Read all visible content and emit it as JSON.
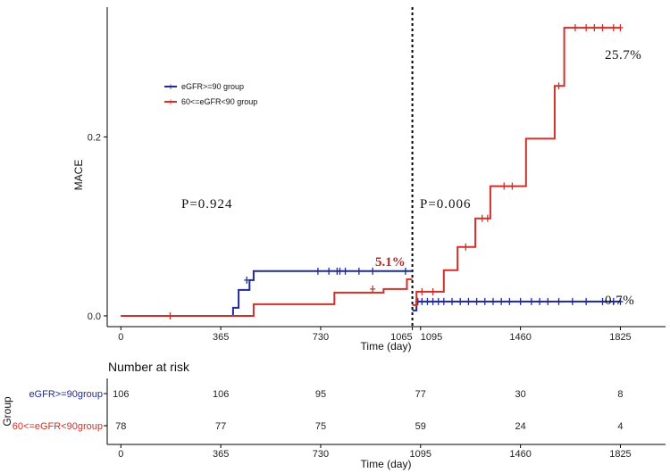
{
  "chart_data": {
    "type": "line",
    "step": true,
    "ylabel": "MACE",
    "xlabel": "Time (day)",
    "xlim": [
      -50,
      1990
    ],
    "ylim": [
      -0.012,
      0.345
    ],
    "x_ticks": [
      0,
      365,
      730,
      1065,
      1095,
      1460,
      1825
    ],
    "x_tick_labels": [
      "0",
      "365",
      "730",
      "1065",
      "1095",
      "1460",
      "1825"
    ],
    "y_ticks": [
      0.0,
      0.2
    ],
    "y_tick_labels": [
      "0.0",
      "0.2"
    ],
    "landmark_x": 1065,
    "colors": {
      "group1": "#1f2a9a",
      "group2": "#d03028"
    },
    "legend": {
      "position": "top-left",
      "items": [
        {
          "label": "eGFR>=90 group",
          "color": "#1f2a9a"
        },
        {
          "label": "60<=eGFR<90 group",
          "color": "#d03028"
        }
      ]
    },
    "annotations": {
      "p_left": "P=0.924",
      "p_right": "P=0.006",
      "label_51": "5.1%",
      "label_257": "25.7%",
      "label_07": "0.7%"
    },
    "series": [
      {
        "color": "#1f2a9a",
        "segments": [
          [
            [
              0,
              0
            ],
            [
              410,
              0
            ],
            [
              410,
              0.009
            ],
            [
              430,
              0.009
            ],
            [
              430,
              0.029
            ],
            [
              470,
              0.029
            ],
            [
              470,
              0.04
            ],
            [
              485,
              0.04
            ],
            [
              485,
              0.05
            ],
            [
              1065,
              0.05
            ]
          ],
          [
            [
              1065,
              0.006
            ],
            [
              1080,
              0.006
            ],
            [
              1080,
              0.016
            ],
            [
              1825,
              0.016
            ]
          ]
        ],
        "censors": [
          [
            460,
            0.04
          ],
          [
            720,
            0.05
          ],
          [
            760,
            0.05
          ],
          [
            790,
            0.05
          ],
          [
            800,
            0.05
          ],
          [
            820,
            0.05
          ],
          [
            870,
            0.05
          ],
          [
            920,
            0.05
          ],
          [
            1040,
            0.05
          ],
          [
            1085,
            0.016
          ],
          [
            1100,
            0.016
          ],
          [
            1120,
            0.016
          ],
          [
            1140,
            0.016
          ],
          [
            1160,
            0.016
          ],
          [
            1180,
            0.016
          ],
          [
            1210,
            0.016
          ],
          [
            1240,
            0.016
          ],
          [
            1270,
            0.016
          ],
          [
            1300,
            0.016
          ],
          [
            1330,
            0.016
          ],
          [
            1360,
            0.016
          ],
          [
            1390,
            0.016
          ],
          [
            1420,
            0.016
          ],
          [
            1460,
            0.016
          ],
          [
            1500,
            0.016
          ],
          [
            1530,
            0.016
          ],
          [
            1560,
            0.016
          ],
          [
            1600,
            0.016
          ],
          [
            1650,
            0.016
          ],
          [
            1700,
            0.016
          ],
          [
            1760,
            0.016
          ],
          [
            1800,
            0.016
          ],
          [
            1825,
            0.016
          ]
        ]
      },
      {
        "color": "#d03028",
        "segments": [
          [
            [
              0,
              0
            ],
            [
              485,
              0
            ],
            [
              485,
              0.013
            ],
            [
              780,
              0.013
            ],
            [
              780,
              0.026
            ],
            [
              960,
              0.026
            ],
            [
              960,
              0.03
            ],
            [
              1045,
              0.03
            ],
            [
              1045,
              0.041
            ],
            [
              1065,
              0.041
            ]
          ],
          [
            [
              1065,
              0.012
            ],
            [
              1080,
              0.012
            ],
            [
              1080,
              0.027
            ],
            [
              1180,
              0.027
            ],
            [
              1180,
              0.051
            ],
            [
              1230,
              0.051
            ],
            [
              1230,
              0.077
            ],
            [
              1295,
              0.077
            ],
            [
              1295,
              0.109
            ],
            [
              1350,
              0.109
            ],
            [
              1350,
              0.145
            ],
            [
              1480,
              0.145
            ],
            [
              1480,
              0.198
            ],
            [
              1585,
              0.198
            ],
            [
              1585,
              0.257
            ],
            [
              1620,
              0.257
            ],
            [
              1620,
              0.322
            ],
            [
              1825,
              0.322
            ]
          ]
        ],
        "censors": [
          [
            180,
            0
          ],
          [
            920,
            0.03
          ],
          [
            1100,
            0.027
          ],
          [
            1140,
            0.027
          ],
          [
            1260,
            0.077
          ],
          [
            1320,
            0.109
          ],
          [
            1340,
            0.109
          ],
          [
            1400,
            0.145
          ],
          [
            1430,
            0.145
          ],
          [
            1600,
            0.257
          ],
          [
            1660,
            0.322
          ],
          [
            1700,
            0.322
          ],
          [
            1730,
            0.322
          ],
          [
            1760,
            0.322
          ],
          [
            1800,
            0.322
          ],
          [
            1825,
            0.322
          ]
        ]
      }
    ],
    "risk_table": {
      "title": "Number at risk",
      "group_axis_label": "Group",
      "xlabel": "Time (day)",
      "times": [
        0,
        365,
        730,
        1095,
        1460,
        1825
      ],
      "time_labels": [
        "0",
        "365",
        "730",
        "1095",
        "1460",
        "1825"
      ],
      "rows": [
        {
          "label": "eGFR>=90group",
          "color": "#1f2a9a",
          "counts": [
            "106",
            "106",
            "95",
            "77",
            "30",
            "8"
          ]
        },
        {
          "label": "60<=eGFR<90group",
          "color": "#d03028",
          "counts": [
            "78",
            "77",
            "75",
            "59",
            "24",
            "4"
          ]
        }
      ]
    }
  }
}
